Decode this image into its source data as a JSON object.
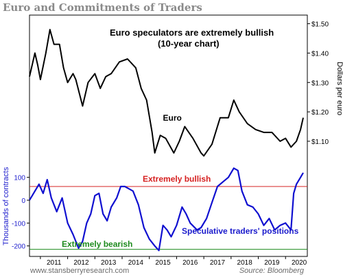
{
  "page": {
    "title": "Euro and Commitments of Traders"
  },
  "footer": {
    "left": "www.stansberryresearch.com",
    "right": "Source: Bloomberg"
  },
  "chart_data": [
    {
      "type": "line",
      "subtitle_lines": [
        "Euro speculators are extremely bullish",
        "(10-year chart)"
      ],
      "series": [
        {
          "name": "Euro",
          "color": "#000000",
          "points": [
            [
              2010.6,
              1.32
            ],
            [
              2010.8,
              1.4
            ],
            [
              2010.9,
              1.36
            ],
            [
              2011.0,
              1.31
            ],
            [
              2011.2,
              1.4
            ],
            [
              2011.35,
              1.48
            ],
            [
              2011.5,
              1.43
            ],
            [
              2011.7,
              1.43
            ],
            [
              2011.85,
              1.35
            ],
            [
              2012.0,
              1.3
            ],
            [
              2012.2,
              1.33
            ],
            [
              2012.3,
              1.31
            ],
            [
              2012.55,
              1.22
            ],
            [
              2012.75,
              1.3
            ],
            [
              2013.0,
              1.33
            ],
            [
              2013.2,
              1.28
            ],
            [
              2013.4,
              1.32
            ],
            [
              2013.6,
              1.33
            ],
            [
              2013.9,
              1.37
            ],
            [
              2014.2,
              1.38
            ],
            [
              2014.4,
              1.36
            ],
            [
              2014.5,
              1.35
            ],
            [
              2014.7,
              1.28
            ],
            [
              2014.9,
              1.24
            ],
            [
              2015.1,
              1.13
            ],
            [
              2015.2,
              1.06
            ],
            [
              2015.4,
              1.12
            ],
            [
              2015.6,
              1.11
            ],
            [
              2015.9,
              1.06
            ],
            [
              2016.1,
              1.1
            ],
            [
              2016.3,
              1.15
            ],
            [
              2016.6,
              1.11
            ],
            [
              2016.9,
              1.06
            ],
            [
              2017.0,
              1.05
            ],
            [
              2017.3,
              1.09
            ],
            [
              2017.6,
              1.18
            ],
            [
              2017.9,
              1.18
            ],
            [
              2018.1,
              1.24
            ],
            [
              2018.3,
              1.2
            ],
            [
              2018.6,
              1.16
            ],
            [
              2018.9,
              1.14
            ],
            [
              2019.2,
              1.13
            ],
            [
              2019.5,
              1.13
            ],
            [
              2019.8,
              1.1
            ],
            [
              2020.0,
              1.11
            ],
            [
              2020.2,
              1.08
            ],
            [
              2020.4,
              1.1
            ],
            [
              2020.55,
              1.14
            ],
            [
              2020.65,
              1.18
            ]
          ]
        }
      ],
      "annotations": [
        {
          "text": "Euro",
          "at": [
            2015.5,
            1.17
          ]
        }
      ],
      "ylabel": "Dollars per euro",
      "y_ticks": [
        "$1.10",
        "$1.20",
        "$1.30",
        "$1.40",
        "$1.50"
      ],
      "y_tick_values": [
        1.1,
        1.2,
        1.3,
        1.4,
        1.5
      ],
      "ylim": [
        1.03,
        1.52
      ],
      "xlim": [
        2010.6,
        2020.8
      ],
      "axis_side": "right"
    },
    {
      "type": "line",
      "series": [
        {
          "name": "Speculative traders' positions",
          "color": "#1010d0",
          "points": [
            [
              2010.6,
              0
            ],
            [
              2010.8,
              40
            ],
            [
              2010.95,
              70
            ],
            [
              2011.1,
              30
            ],
            [
              2011.25,
              90
            ],
            [
              2011.4,
              10
            ],
            [
              2011.6,
              -50
            ],
            [
              2011.8,
              10
            ],
            [
              2012.0,
              -100
            ],
            [
              2012.2,
              -150
            ],
            [
              2012.4,
              -210
            ],
            [
              2012.55,
              -180
            ],
            [
              2012.7,
              -100
            ],
            [
              2012.85,
              -60
            ],
            [
              2013.0,
              20
            ],
            [
              2013.15,
              30
            ],
            [
              2013.3,
              -60
            ],
            [
              2013.45,
              -90
            ],
            [
              2013.6,
              -30
            ],
            [
              2013.8,
              10
            ],
            [
              2013.95,
              60
            ],
            [
              2014.1,
              60
            ],
            [
              2014.25,
              50
            ],
            [
              2014.4,
              40
            ],
            [
              2014.6,
              -20
            ],
            [
              2014.8,
              -120
            ],
            [
              2015.0,
              -170
            ],
            [
              2015.2,
              -200
            ],
            [
              2015.35,
              -220
            ],
            [
              2015.5,
              -110
            ],
            [
              2015.65,
              -130
            ],
            [
              2015.8,
              -160
            ],
            [
              2016.0,
              -110
            ],
            [
              2016.2,
              -30
            ],
            [
              2016.35,
              -60
            ],
            [
              2016.5,
              -100
            ],
            [
              2016.75,
              -130
            ],
            [
              2016.9,
              -120
            ],
            [
              2017.1,
              -80
            ],
            [
              2017.3,
              -10
            ],
            [
              2017.5,
              60
            ],
            [
              2017.7,
              80
            ],
            [
              2017.9,
              100
            ],
            [
              2018.1,
              140
            ],
            [
              2018.25,
              130
            ],
            [
              2018.4,
              40
            ],
            [
              2018.6,
              -20
            ],
            [
              2018.8,
              -30
            ],
            [
              2019.0,
              -60
            ],
            [
              2019.2,
              -110
            ],
            [
              2019.4,
              -80
            ],
            [
              2019.6,
              -130
            ],
            [
              2019.8,
              -110
            ],
            [
              2020.0,
              -100
            ],
            [
              2020.2,
              -130
            ],
            [
              2020.3,
              30
            ],
            [
              2020.4,
              70
            ],
            [
              2020.55,
              100
            ],
            [
              2020.65,
              120
            ]
          ]
        }
      ],
      "reference_lines": [
        {
          "value": 60,
          "label": "Extremely bullish",
          "color": "#d62020"
        },
        {
          "value": -215,
          "label": "Extremely bearish",
          "color": "#1c8a1c"
        }
      ],
      "ylabel": "Thousands of contracts",
      "y_ticks": [
        "100",
        "0",
        "-100",
        "-200"
      ],
      "y_tick_values": [
        100,
        0,
        -100,
        -200
      ],
      "ylim": [
        -240,
        165
      ],
      "x_ticks": [
        "2011",
        "2012",
        "2013",
        "2014",
        "2015",
        "2016",
        "2017",
        "2018",
        "2019",
        "2020"
      ],
      "x_tick_values": [
        2011,
        2012,
        2013,
        2014,
        2015,
        2016,
        2017,
        2018,
        2019,
        2020
      ],
      "xlim": [
        2010.6,
        2020.8
      ],
      "axis_side": "left"
    }
  ]
}
